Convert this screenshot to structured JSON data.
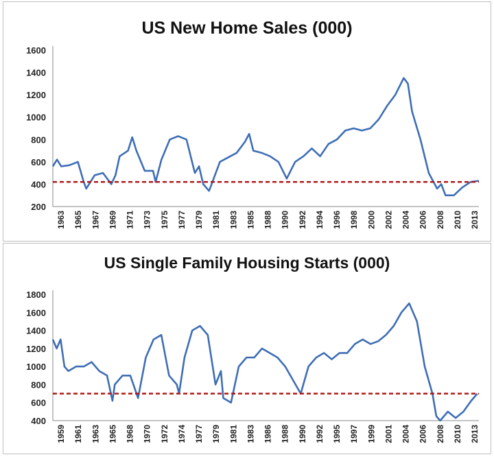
{
  "chart_data": [
    {
      "type": "line",
      "title": "US New Home Sales (000)",
      "xlabel": "",
      "ylabel": "",
      "ylim": [
        200,
        1600
      ],
      "yticks": [
        "200",
        "400",
        "600",
        "800",
        "1000",
        "1200",
        "1400",
        "1600"
      ],
      "xticks": [
        "1963",
        "1965",
        "1967",
        "1969",
        "1971",
        "1973",
        "1975",
        "1977",
        "1979",
        "1981",
        "1983",
        "1985",
        "1988",
        "1990",
        "1992",
        "1994",
        "1996",
        "1998",
        "2000",
        "2002",
        "2004",
        "2006",
        "2008",
        "2010",
        "2013"
      ],
      "xlim": [
        1963,
        2014
      ],
      "reference_line": 420,
      "series": [
        {
          "name": "New Home Sales",
          "color": "#3d6db5",
          "x": [
            1963,
            1963.5,
            1964,
            1965,
            1966,
            1966.7,
            1967,
            1968,
            1969,
            1970,
            1970.5,
            1971,
            1972,
            1972.5,
            1973,
            1974,
            1975,
            1975.3,
            1976,
            1977,
            1978,
            1979,
            1980,
            1980.5,
            1981,
            1981.7,
            1982,
            1983,
            1984,
            1985,
            1986,
            1986.5,
            1987,
            1988,
            1989,
            1990,
            1991,
            1992,
            1993,
            1994,
            1995,
            1996,
            1997,
            1998,
            1999,
            2000,
            2001,
            2002,
            2003,
            2004,
            2005,
            2005.5,
            2006,
            2007,
            2008,
            2009,
            2009.5,
            2010,
            2011,
            2012,
            2013,
            2014
          ],
          "values": [
            560,
            620,
            560,
            570,
            600,
            420,
            360,
            480,
            500,
            400,
            480,
            650,
            700,
            820,
            700,
            520,
            520,
            420,
            620,
            800,
            830,
            800,
            500,
            560,
            400,
            340,
            400,
            600,
            640,
            680,
            780,
            850,
            700,
            680,
            650,
            600,
            450,
            600,
            650,
            720,
            650,
            760,
            800,
            880,
            900,
            880,
            900,
            980,
            1100,
            1200,
            1350,
            1300,
            1050,
            800,
            500,
            360,
            400,
            300,
            300,
            370,
            420,
            430
          ]
        }
      ]
    },
    {
      "type": "line",
      "title": "US Single Family Housing Starts (000)",
      "xlabel": "",
      "ylabel": "",
      "ylim": [
        400,
        1800
      ],
      "yticks": [
        "400",
        "600",
        "800",
        "1000",
        "1200",
        "1400",
        "1600",
        "1800"
      ],
      "xticks": [
        "1959",
        "1961",
        "1963",
        "1965",
        "1968",
        "1970",
        "1972",
        "1974",
        "1977",
        "1979",
        "1981",
        "1983",
        "1986",
        "1988",
        "1990",
        "1992",
        "1995",
        "1997",
        "1999",
        "2001",
        "2004",
        "2006",
        "2008",
        "2010",
        "2013"
      ],
      "xlim": [
        1959,
        2014
      ],
      "reference_line": 700,
      "series": [
        {
          "name": "Housing Starts",
          "color": "#3d6db5",
          "x": [
            1959,
            1959.5,
            1960,
            1960.5,
            1961,
            1962,
            1963,
            1964,
            1965,
            1966,
            1966.7,
            1967,
            1968,
            1969,
            1970,
            1971,
            1972,
            1973,
            1974,
            1975,
            1975.3,
            1976,
            1977,
            1978,
            1979,
            1980,
            1980.7,
            1981,
            1982,
            1983,
            1984,
            1985,
            1986,
            1987,
            1988,
            1989,
            1990,
            1991,
            1992,
            1993,
            1994,
            1995,
            1996,
            1997,
            1998,
            1999,
            2000,
            2001,
            2002,
            2003,
            2004,
            2005,
            2006,
            2007,
            2008,
            2008.5,
            2009,
            2010,
            2011,
            2012,
            2013,
            2013.8
          ],
          "values": [
            1300,
            1200,
            1300,
            1000,
            950,
            1000,
            1000,
            1050,
            950,
            900,
            620,
            800,
            900,
            900,
            650,
            1100,
            1300,
            1350,
            900,
            800,
            700,
            1100,
            1400,
            1450,
            1350,
            800,
            950,
            650,
            600,
            1000,
            1100,
            1100,
            1200,
            1150,
            1100,
            1000,
            850,
            700,
            1000,
            1100,
            1150,
            1080,
            1150,
            1150,
            1250,
            1300,
            1250,
            1280,
            1350,
            1450,
            1600,
            1700,
            1500,
            1000,
            700,
            450,
            400,
            500,
            430,
            500,
            620,
            700
          ]
        }
      ]
    }
  ]
}
